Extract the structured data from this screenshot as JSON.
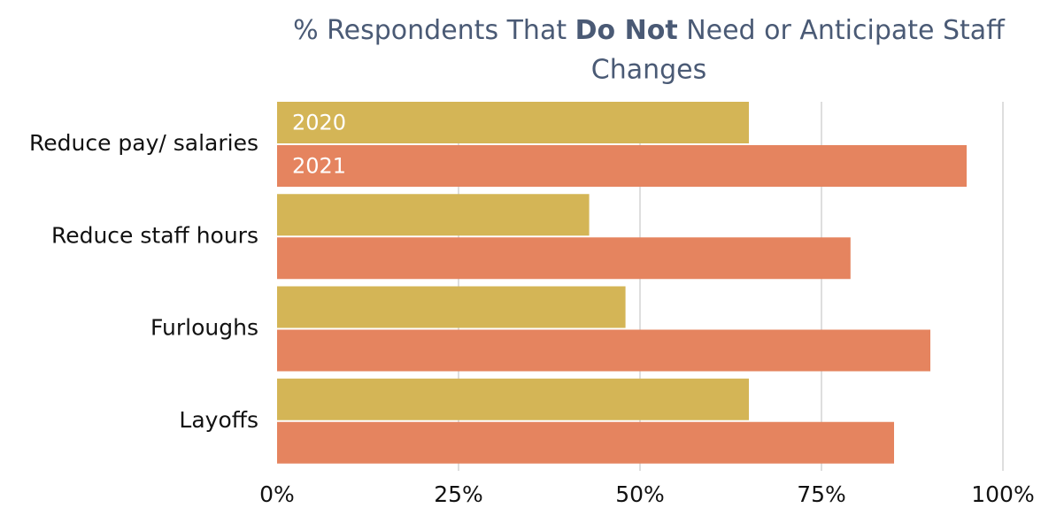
{
  "chart_data": {
    "type": "bar",
    "orientation": "horizontal",
    "title": [
      "% Respondents That ",
      "Do Not",
      " Need or Anticipate Staff",
      "Changes"
    ],
    "categories": [
      "Reduce pay/ salaries",
      "Reduce staff hours",
      "Furloughs",
      "Layoffs"
    ],
    "series": [
      {
        "name": "2020",
        "color": "#d4b556",
        "values": [
          65,
          43,
          48,
          65
        ]
      },
      {
        "name": "2021",
        "color": "#e5845f",
        "values": [
          95,
          79,
          90,
          85
        ]
      }
    ],
    "xlim": [
      0,
      100
    ],
    "xticks": [
      {
        "value": 0,
        "label": "0%"
      },
      {
        "value": 25,
        "label": "25%"
      },
      {
        "value": 50,
        "label": "50%"
      },
      {
        "value": 75,
        "label": "75%"
      },
      {
        "value": 100,
        "label": "100%"
      }
    ],
    "grid": true
  }
}
